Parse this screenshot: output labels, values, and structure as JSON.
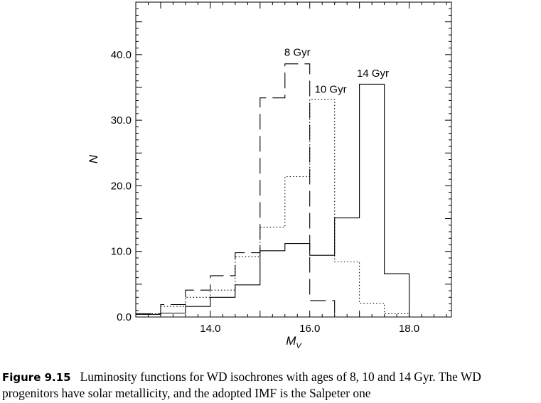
{
  "chart_data": {
    "type": "histogram",
    "xlabel": "M",
    "xlabel_sub": "V",
    "ylabel": "N",
    "xlim": [
      12.5,
      18.85
    ],
    "ylim": [
      0,
      48
    ],
    "x_ticks": [
      "14.0",
      "16.0",
      "18.0"
    ],
    "y_ticks": [
      "0.0",
      "10.0",
      "20.0",
      "30.0",
      "40.0"
    ],
    "x_tick_values": [
      14.0,
      16.0,
      18.0
    ],
    "y_tick_values": [
      0,
      10,
      20,
      30,
      40
    ],
    "grid": false,
    "bin_edges": [
      12.5,
      13.0,
      13.5,
      14.0,
      14.5,
      15.0,
      15.5,
      16.0,
      16.5,
      17.0,
      17.5,
      18.0
    ],
    "series": [
      {
        "name": "8 Gyr",
        "style": "dashed",
        "values": [
          0.5,
          1.9,
          4.1,
          6.3,
          9.8,
          33.4,
          38.6,
          2.5,
          0,
          0,
          0
        ],
        "label_x": 15.75,
        "label_y": 39.8
      },
      {
        "name": "10 Gyr",
        "style": "dotted",
        "values": [
          0.5,
          1.6,
          3.0,
          4.1,
          9.2,
          13.7,
          21.4,
          33.2,
          8.4,
          2.1,
          0.5
        ],
        "label_x": 16.42,
        "label_y": 34.2
      },
      {
        "name": "14 Gyr",
        "style": "solid",
        "values": [
          0.4,
          0.6,
          1.6,
          3.0,
          4.9,
          10.1,
          11.2,
          9.4,
          15.1,
          35.5,
          6.6
        ],
        "label_x": 17.27,
        "label_y": 36.6
      }
    ]
  },
  "caption": {
    "label": "Figure 9.15",
    "text": "Luminosity functions for WD isochrones with ages of 8, 10 and 14 Gyr. The WD progenitors have solar metallicity, and the adopted IMF is the Salpeter one"
  }
}
